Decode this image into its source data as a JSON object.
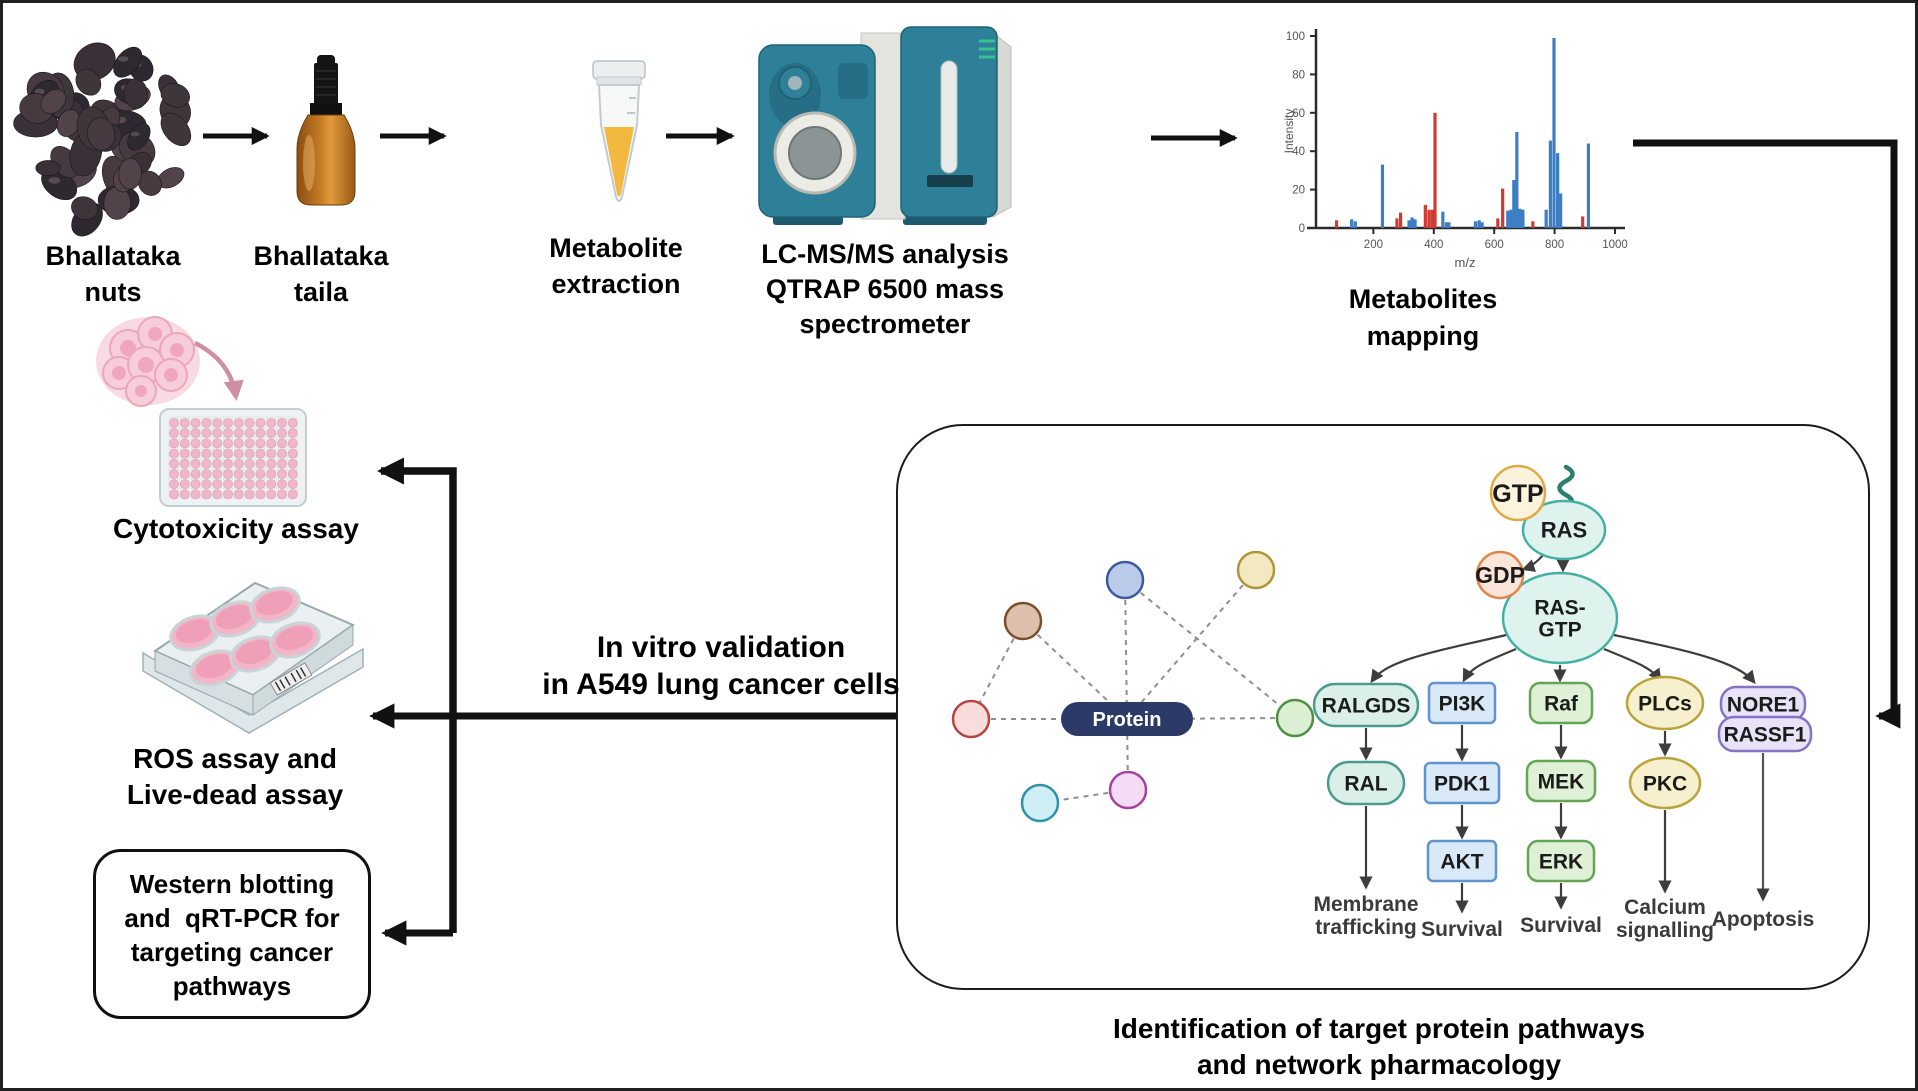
{
  "steps": {
    "nuts": {
      "line1": "Bhallataka",
      "line2": "nuts"
    },
    "taila": {
      "line1": "Bhallataka",
      "line2": "taila"
    },
    "extraction": {
      "line1": "Metabolite",
      "line2": "extraction"
    },
    "lcms": {
      "line1": "LC-MS/MS analysis",
      "line2": "QTRAP 6500 mass",
      "line3": "spectrometer"
    },
    "mapping": {
      "line1": "Metabolites",
      "line2": "mapping"
    }
  },
  "assays": {
    "cytotoxicity": "Cytotoxicity assay",
    "ros": {
      "line1": "ROS assay and",
      "line2": "Live-dead assay"
    },
    "western": {
      "line1": "Western blotting",
      "line2": "and  qRT-PCR for",
      "line3": "targeting cancer",
      "line4": "pathways"
    }
  },
  "invitro": {
    "line1": "In vitro validation",
    "line2": "in A549 lung cancer cells"
  },
  "caption": {
    "line1": "Identification of target protein pathways",
    "line2": "and network pharmacology"
  },
  "chart_data": {
    "type": "bar",
    "title": "Metabolites mapping",
    "xlabel": "m/z",
    "ylabel": "Intensity",
    "xlim": [
      0,
      1000
    ],
    "ylim": [
      0,
      100
    ],
    "grid": false,
    "xticks": [
      200,
      400,
      600,
      800,
      1000
    ],
    "yticks": [
      0,
      20,
      40,
      60,
      80,
      100
    ],
    "series": [
      {
        "name": "blue-peaks",
        "color": "#3c7dc4",
        "points": [
          [
            128,
            4.5
          ],
          [
            140,
            3.5
          ],
          [
            230,
            33
          ],
          [
            318,
            4
          ],
          [
            328,
            5.5
          ],
          [
            338,
            4.5
          ],
          [
            430,
            8.5
          ],
          [
            442,
            3
          ],
          [
            450,
            3
          ],
          [
            538,
            3.5
          ],
          [
            550,
            4
          ],
          [
            560,
            3
          ],
          [
            645,
            9
          ],
          [
            655,
            9.5
          ],
          [
            665,
            25
          ],
          [
            675,
            50
          ],
          [
            685,
            10
          ],
          [
            695,
            9.5
          ],
          [
            772,
            9.5
          ],
          [
            786,
            45.5
          ],
          [
            798,
            99
          ],
          [
            810,
            39
          ],
          [
            820,
            18
          ],
          [
            912,
            44
          ]
        ]
      },
      {
        "name": "red-peaks",
        "color": "#d23a31",
        "points": [
          [
            78,
            4
          ],
          [
            278,
            5
          ],
          [
            290,
            8
          ],
          [
            372,
            12
          ],
          [
            384,
            9.5
          ],
          [
            395,
            9.5
          ],
          [
            404,
            60
          ],
          [
            612,
            5
          ],
          [
            628,
            20.5
          ],
          [
            728,
            3.5
          ],
          [
            893,
            6
          ]
        ]
      }
    ]
  },
  "network": {
    "hub": {
      "label": "Protein",
      "fill": "#2b3a67",
      "text": "#ffffff"
    },
    "nodes": [
      {
        "id": "blue",
        "fill": "#b9cbe9",
        "stroke": "#3c5a9e"
      },
      {
        "id": "yellow",
        "fill": "#f2e9c0",
        "stroke": "#b1943a"
      },
      {
        "id": "brown",
        "fill": "#dcc0ac",
        "stroke": "#7c4f2c"
      },
      {
        "id": "red",
        "fill": "#f9dddd",
        "stroke": "#b94444"
      },
      {
        "id": "green",
        "fill": "#dbf0d3",
        "stroke": "#4d8f43"
      },
      {
        "id": "magenta",
        "fill": "#f4ddf4",
        "stroke": "#a344a3"
      },
      {
        "id": "cyan",
        "fill": "#cfeff7",
        "stroke": "#2f93a8"
      }
    ],
    "edges": [
      [
        "blue",
        "hub"
      ],
      [
        "yellow",
        "hub"
      ],
      [
        "blue",
        "green"
      ],
      [
        "green",
        "hub"
      ],
      [
        "red",
        "hub"
      ],
      [
        "brown",
        "red"
      ],
      [
        "brown",
        "hub"
      ],
      [
        "magenta",
        "hub"
      ],
      [
        "magenta",
        "cyan"
      ]
    ]
  },
  "pathway": {
    "molecules": [
      {
        "id": "ras",
        "label": "RAS",
        "fill": "#def2ee",
        "stroke": "#44b0a2"
      },
      {
        "id": "rasgtp",
        "label": "RAS-\nGTP",
        "fill": "#def2ee",
        "stroke": "#44b0a2"
      },
      {
        "id": "gtp",
        "label": "GTP",
        "fill": "#fdf3dc",
        "stroke": "#dfa945"
      },
      {
        "id": "gdp",
        "label": "GDP",
        "fill": "#fbe4d8",
        "stroke": "#e0854e"
      },
      {
        "id": "ralgds",
        "label": "RALGDS",
        "fill": "#d9efe7",
        "stroke": "#4a9b8e"
      },
      {
        "id": "ral",
        "label": "RAL",
        "fill": "#d9efe7",
        "stroke": "#4a9b8e"
      },
      {
        "id": "pi3k",
        "label": "PI3K",
        "fill": "#d9e9f8",
        "stroke": "#6193cc"
      },
      {
        "id": "pdk1",
        "label": "PDK1",
        "fill": "#d9e9f8",
        "stroke": "#6193cc"
      },
      {
        "id": "akt",
        "label": "AKT",
        "fill": "#d9e9f8",
        "stroke": "#6193cc"
      },
      {
        "id": "raf",
        "label": "Raf",
        "fill": "#def0d6",
        "stroke": "#66a558"
      },
      {
        "id": "mek",
        "label": "MEK",
        "fill": "#def0d6",
        "stroke": "#66a558"
      },
      {
        "id": "erk",
        "label": "ERK",
        "fill": "#def0d6",
        "stroke": "#66a558"
      },
      {
        "id": "plcs",
        "label": "PLCs",
        "fill": "#f7f0cf",
        "stroke": "#b9a43c"
      },
      {
        "id": "pkc",
        "label": "PKC",
        "fill": "#f7f0cf",
        "stroke": "#b9a43c"
      },
      {
        "id": "nore1",
        "label": "NORE1",
        "fill": "#e8e3f7",
        "stroke": "#8672c4"
      },
      {
        "id": "rassf1",
        "label": "RASSF1",
        "fill": "#e8e3f7",
        "stroke": "#8672c4"
      }
    ],
    "outputs": [
      {
        "line1": "Membrane",
        "line2": "trafficking"
      },
      {
        "line1": "Survival"
      },
      {
        "line1": "Survival"
      },
      {
        "line1": "Calcium",
        "line2": "signalling"
      },
      {
        "line1": "Apoptosis"
      }
    ]
  },
  "colors": {
    "flow_arrow": "#111111",
    "pathway_arrow": "#3d3d3d",
    "network_edge": "#8f8f8f",
    "membrane_anchor": "#2a7f6e",
    "pink_arrow": "#cf8fa2"
  }
}
